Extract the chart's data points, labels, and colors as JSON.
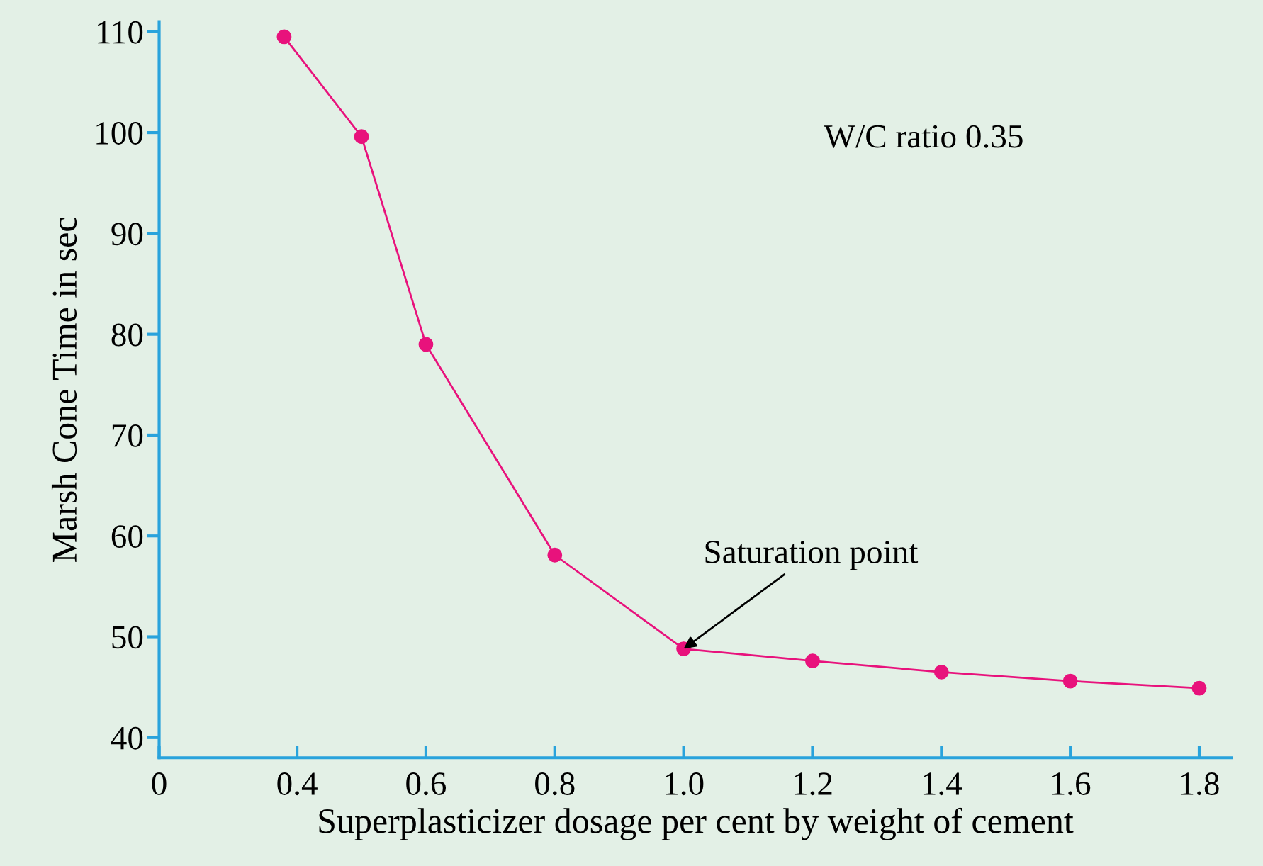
{
  "chart_data": {
    "type": "line",
    "xlabel": "Superplasticizer dosage per cent by weight of cement",
    "ylabel": "Marsh Cone Time in sec",
    "x": [
      0.38,
      0.5,
      0.6,
      0.8,
      1.0,
      1.2,
      1.4,
      1.6,
      1.8
    ],
    "series": [
      {
        "color": "#e8127c",
        "values": [
          109.5,
          99.6,
          79.0,
          58.1,
          48.8,
          47.6,
          46.5,
          45.6,
          44.9
        ]
      }
    ],
    "xlim": [
      0.186,
      1.85
    ],
    "xticks": [
      {
        "value": 0.186,
        "label": "0"
      },
      0.4,
      0.6,
      0.8,
      {
        "value": 1.0,
        "label": "1.0"
      },
      1.2,
      1.4,
      1.6,
      1.8
    ],
    "ylim": [
      38,
      111
    ],
    "yticks": [
      40,
      50,
      60,
      70,
      80,
      90,
      100,
      110
    ],
    "marker": "circle",
    "line_style": "solid",
    "grid": false,
    "legend": false,
    "annotations": [
      "W/C ratio 0.35",
      {
        "text": "Saturation point",
        "x": 1.0,
        "y": 48.8
      }
    ]
  }
}
